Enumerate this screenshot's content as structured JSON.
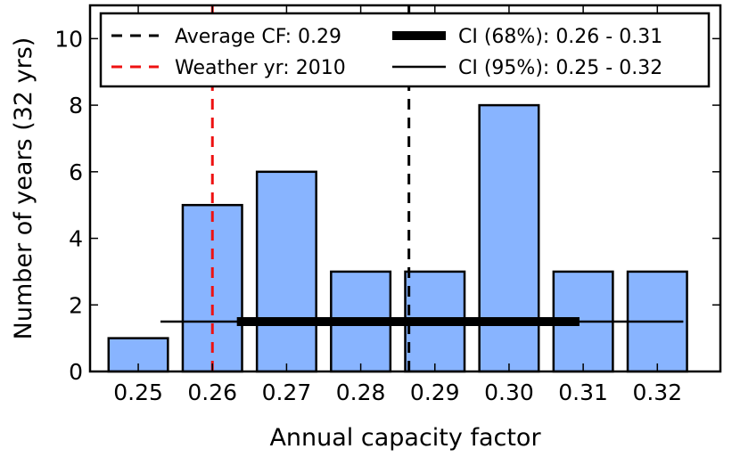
{
  "chart_data": {
    "type": "bar",
    "title": "",
    "xlabel": "Annual capacity factor",
    "ylabel": "Number of years (32 yrs)",
    "categories": [
      "0.25",
      "0.26",
      "0.27",
      "0.28",
      "0.29",
      "0.30",
      "0.31",
      "0.32"
    ],
    "x": [
      0.25,
      0.26,
      0.27,
      0.28,
      0.29,
      0.3,
      0.31,
      0.32
    ],
    "values": [
      1,
      5,
      6,
      3,
      3,
      8,
      3,
      3
    ],
    "xlim": [
      0.2435,
      0.3285
    ],
    "ylim": [
      0,
      11
    ],
    "yticks": [
      0,
      2,
      4,
      6,
      8,
      10
    ],
    "bar_width": 0.008,
    "bar_color": "#88b4ff",
    "reference_lines": [
      {
        "name": "Average CF",
        "x": 0.2865,
        "color": "#000000",
        "style": "dashed"
      },
      {
        "name": "Weather yr",
        "x": 0.26,
        "color": "#ee1111",
        "style": "dashed"
      }
    ],
    "intervals": [
      {
        "name": "CI (95%)",
        "from": 0.253,
        "to": 0.3235,
        "y": 1.5,
        "weight": "thin",
        "color": "#000000"
      },
      {
        "name": "CI (68%)",
        "from": 0.2633,
        "to": 0.3095,
        "y": 1.5,
        "weight": "thick",
        "color": "#000000"
      }
    ],
    "legend": {
      "position": "top",
      "entries": [
        {
          "label": "Average CF: 0.29",
          "kind": "dashed",
          "color": "#000000"
        },
        {
          "label": "CI (68%): 0.26 - 0.31",
          "kind": "thick",
          "color": "#000000"
        },
        {
          "label": "Weather yr: 2010",
          "kind": "dashed",
          "color": "#ee1111"
        },
        {
          "label": "CI (95%): 0.25 - 0.32",
          "kind": "thin",
          "color": "#000000"
        }
      ]
    }
  }
}
